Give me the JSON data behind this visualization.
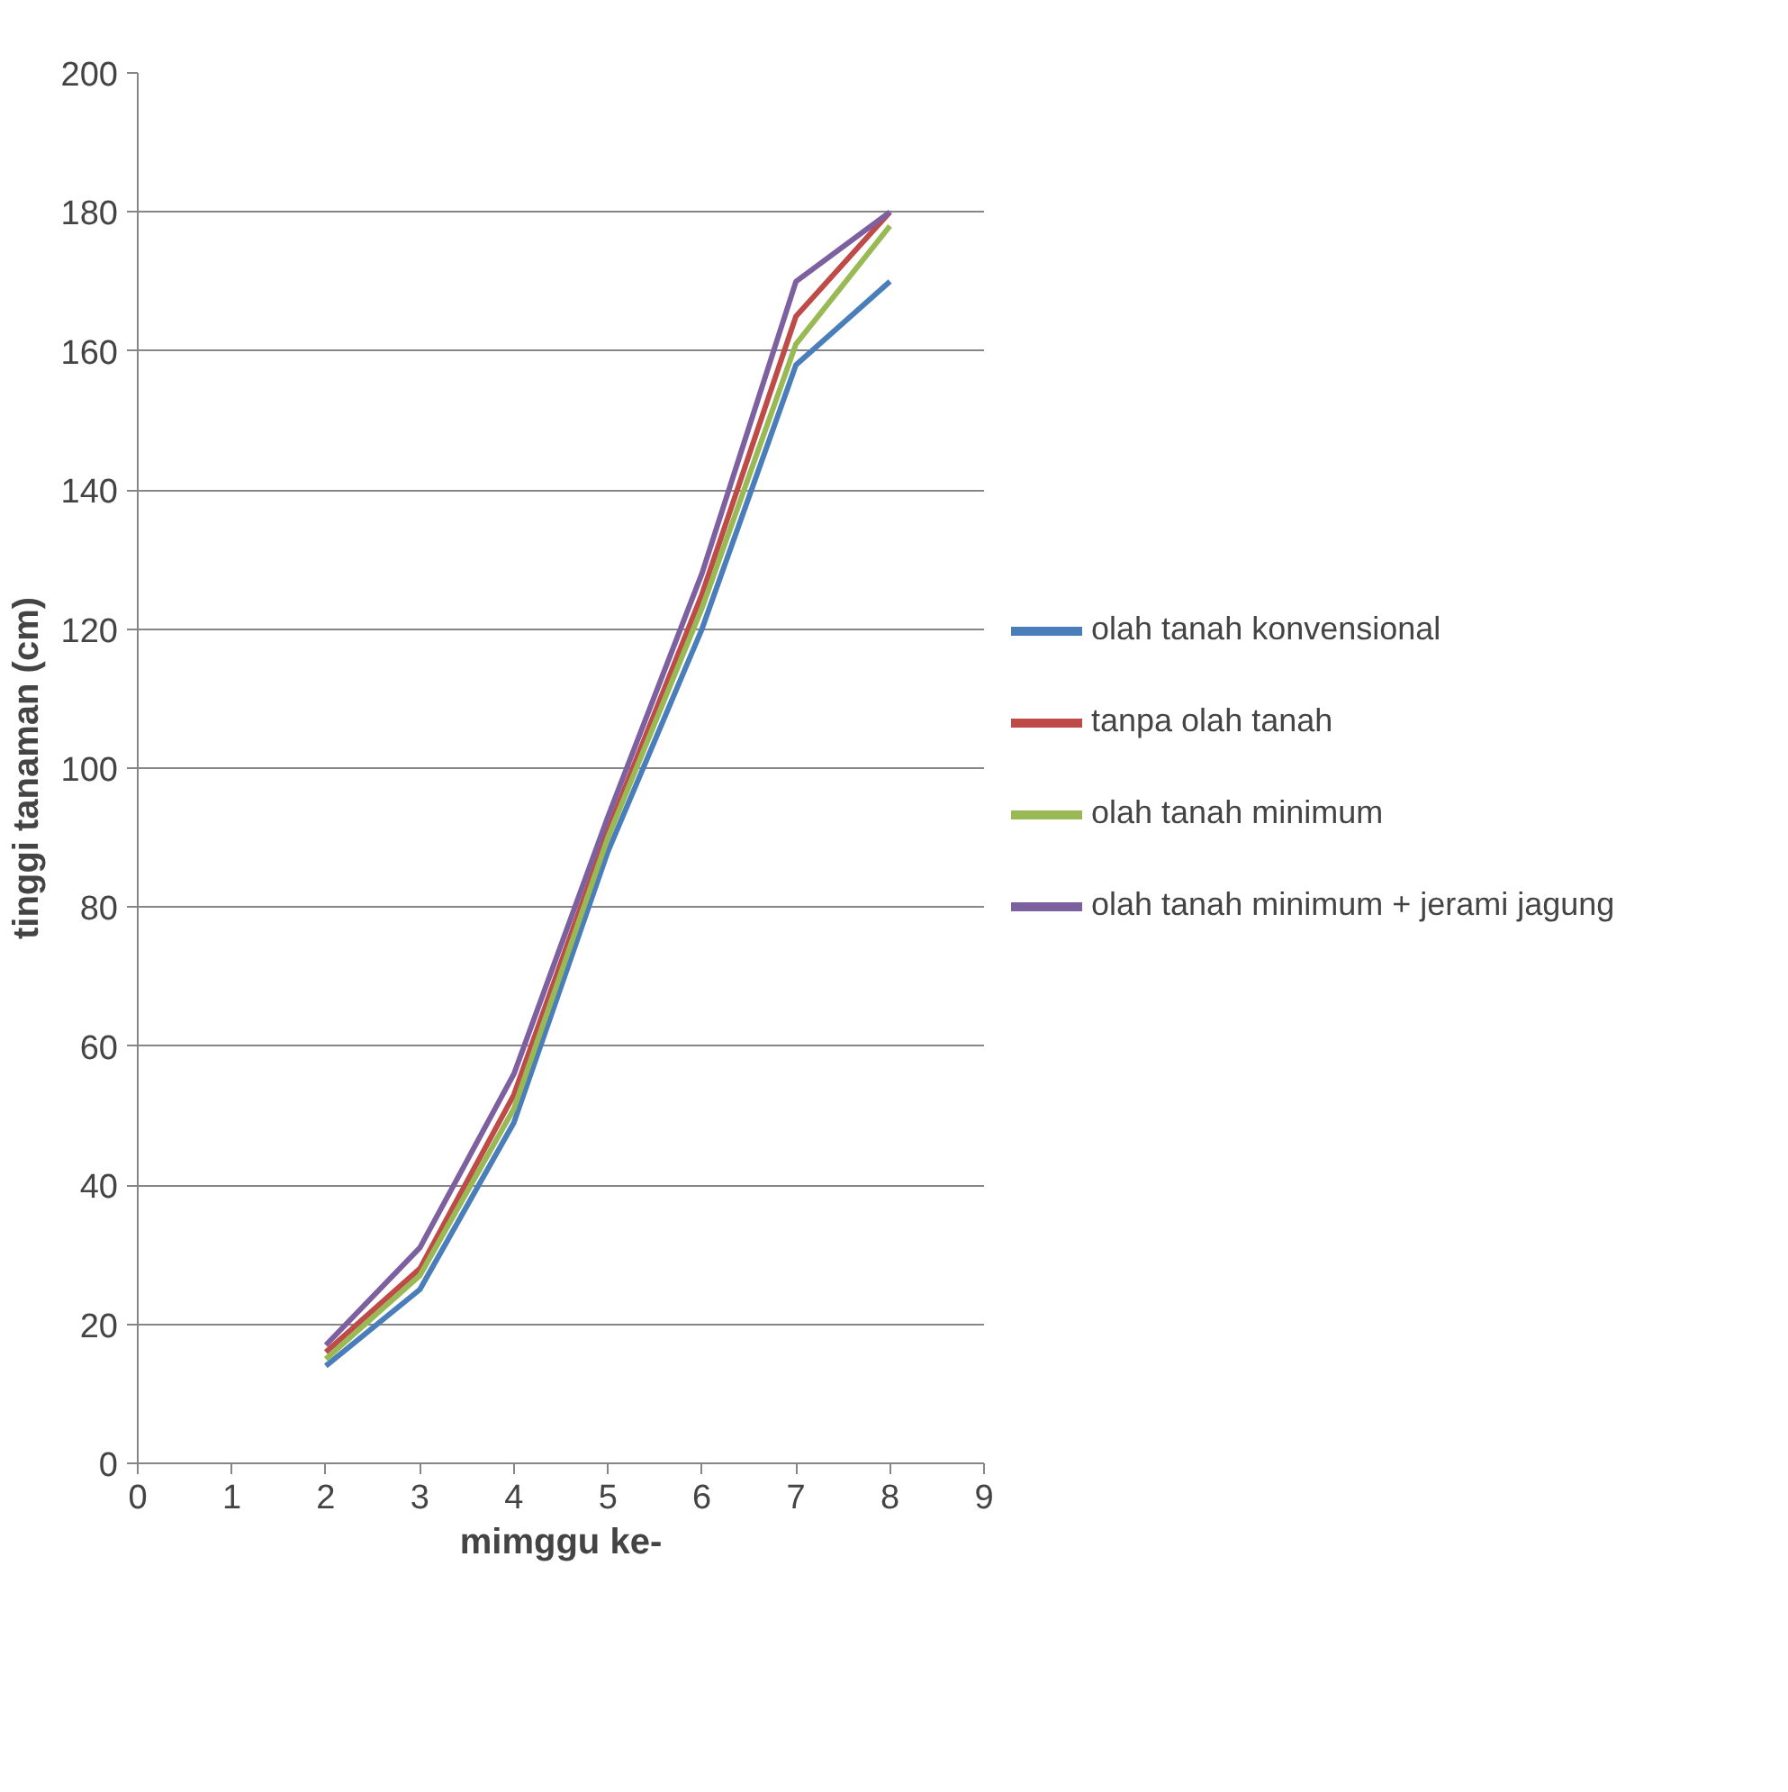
{
  "chart_data": {
    "type": "line",
    "xlabel": "mimggu ke-",
    "ylabel": "tinggi tanaman (cm)",
    "x": [
      2,
      3,
      4,
      5,
      6,
      7,
      8
    ],
    "series": [
      {
        "name": "olah tanah konvensional",
        "color": "#4a7ebb",
        "values": [
          14,
          25,
          49,
          88,
          120,
          158,
          170
        ]
      },
      {
        "name": "tanpa olah tanah",
        "color": "#be4b48",
        "values": [
          16,
          28,
          53,
          91,
          125,
          165,
          180
        ]
      },
      {
        "name": "olah tanah minimum",
        "color": "#98b954",
        "values": [
          15,
          27,
          51,
          90,
          123,
          161,
          178
        ]
      },
      {
        "name": "olah tanah minimum + jerami jagung",
        "color": "#7d60a0",
        "values": [
          17,
          31,
          56,
          93,
          128,
          170,
          180
        ]
      }
    ],
    "xlim": [
      0,
      9
    ],
    "xticks": [
      0,
      1,
      2,
      3,
      4,
      5,
      6,
      7,
      8,
      9
    ],
    "ylim": [
      0,
      200
    ],
    "yticks": [
      0,
      20,
      40,
      60,
      80,
      100,
      120,
      140,
      160,
      180,
      200
    ],
    "grid": "y",
    "legend": "right",
    "marker": "none",
    "line_style": "solid"
  }
}
